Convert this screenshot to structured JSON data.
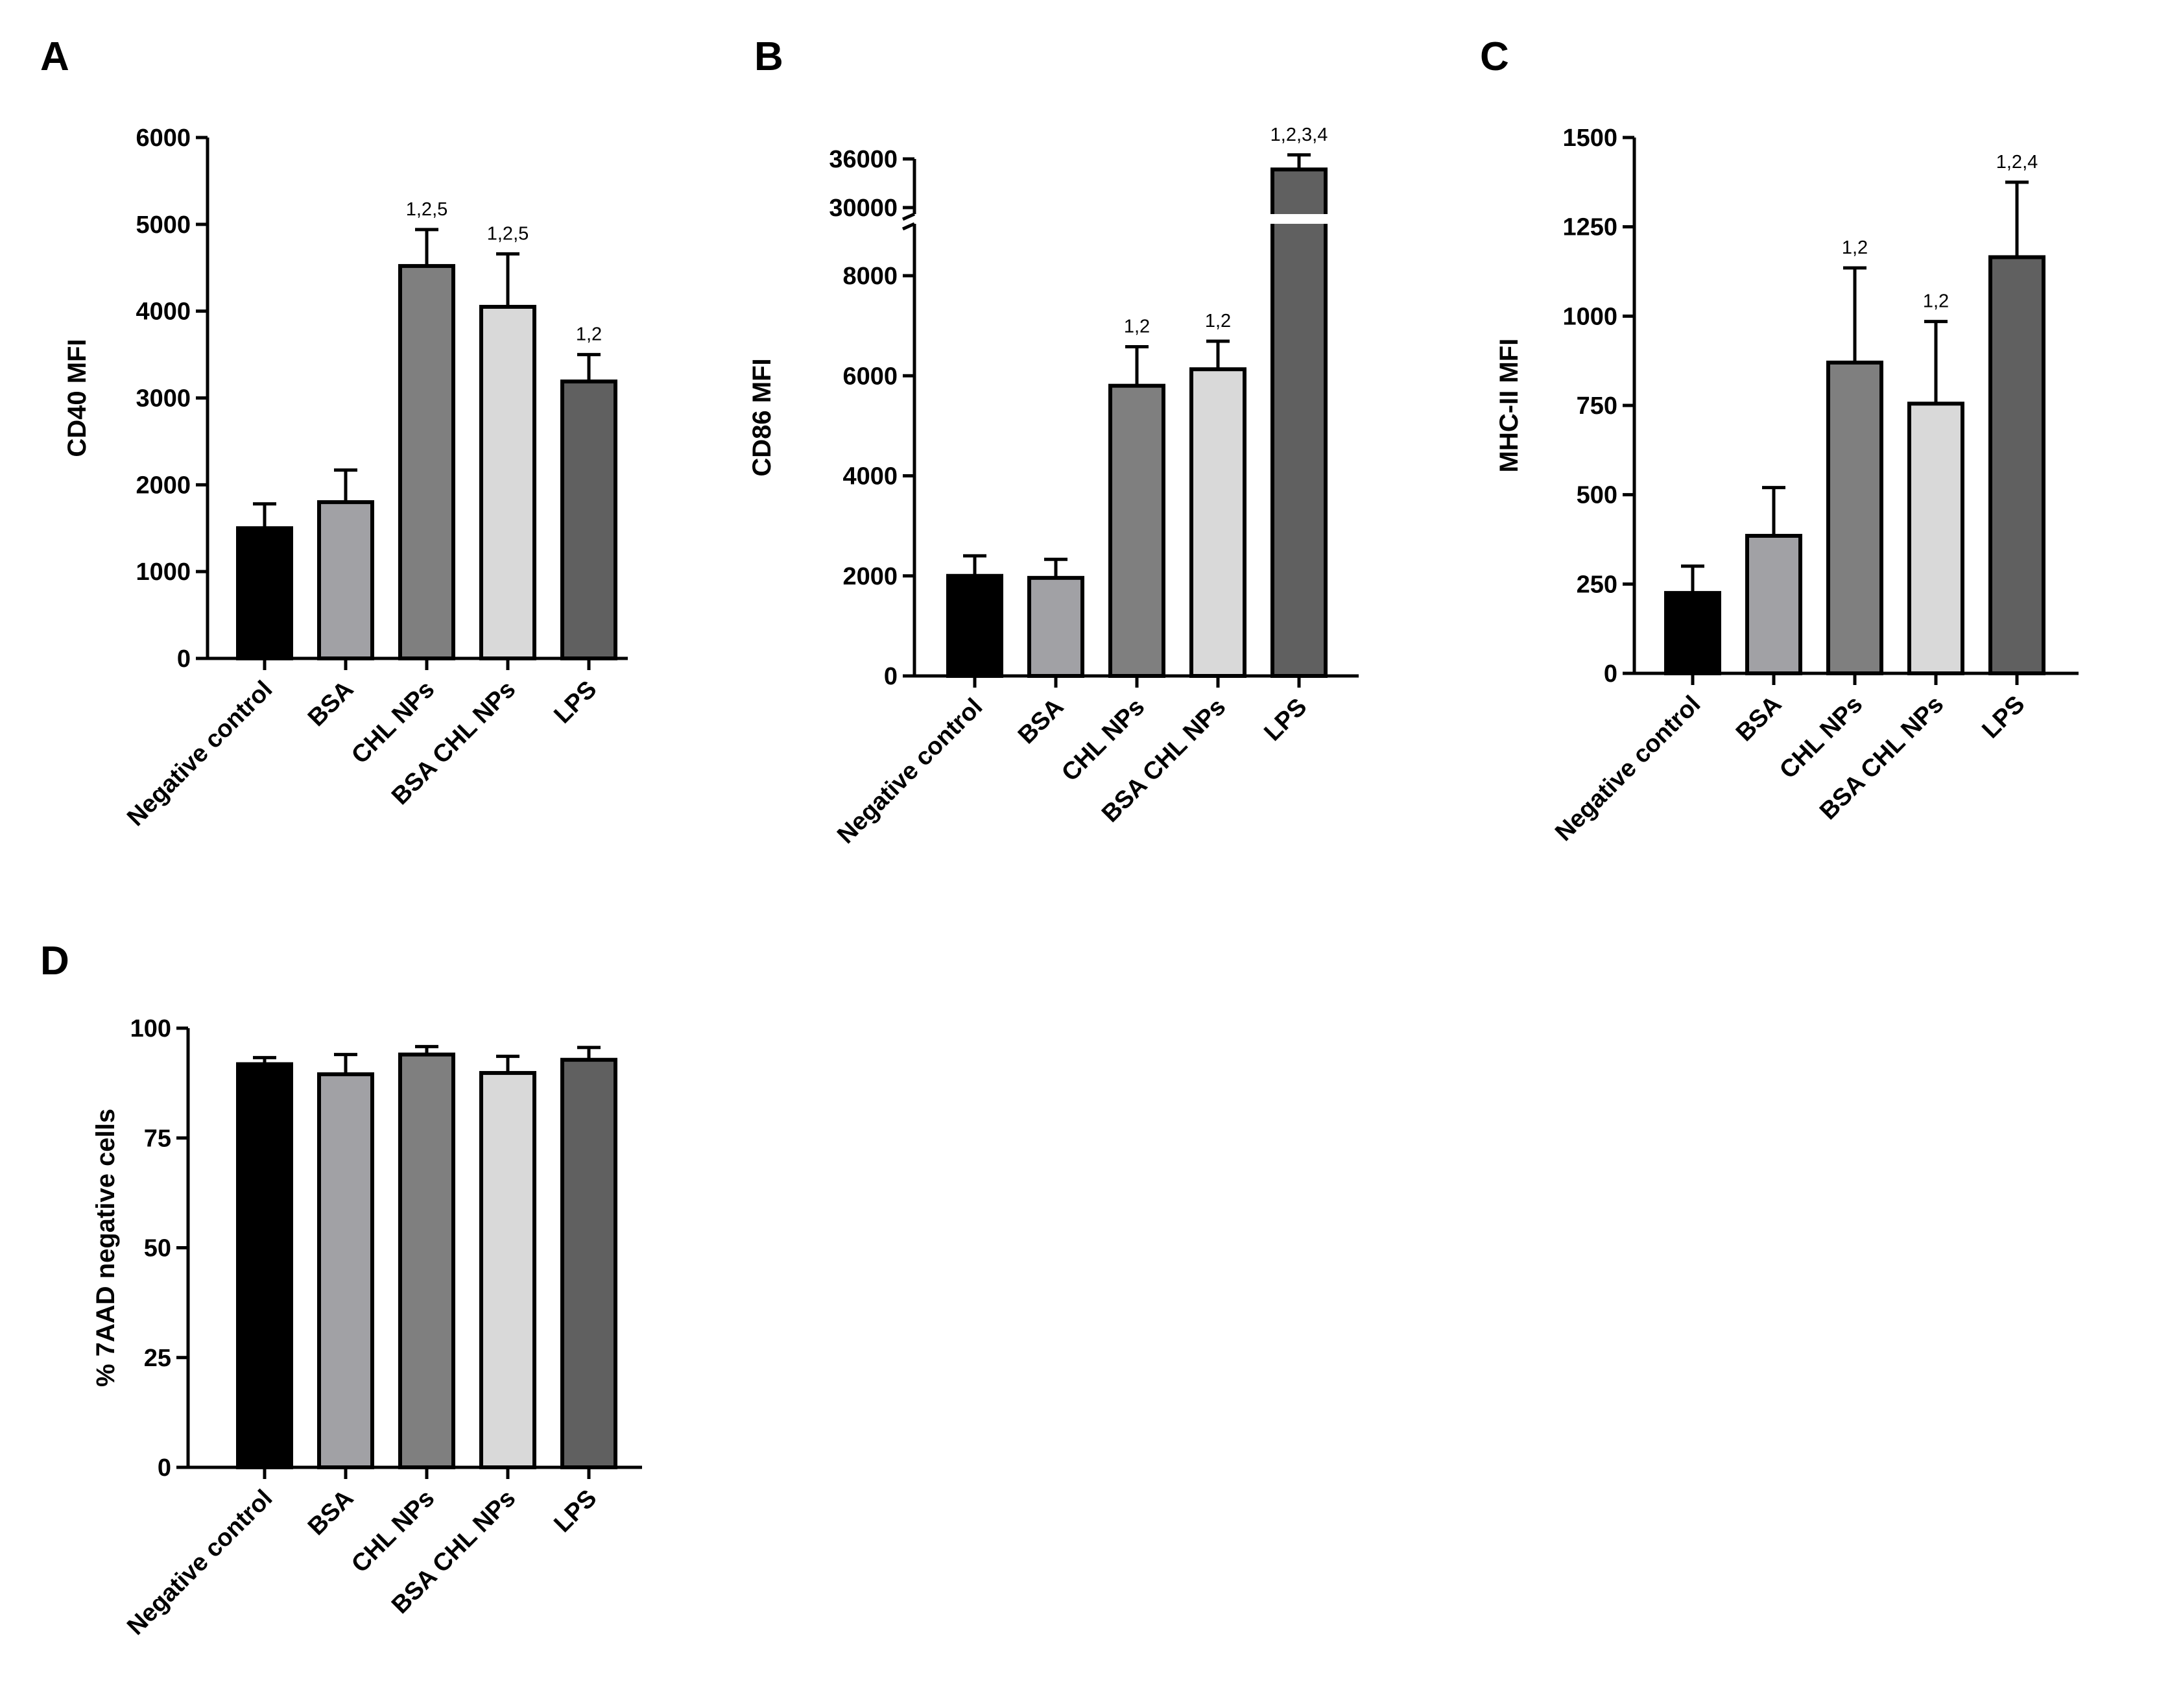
{
  "colors": {
    "negative_control": "#000000",
    "bsa": "#a1a1a5",
    "chl_nps": "#7f7f7f",
    "bsa_chl_nps": "#d9d9d9",
    "lps": "#606060"
  },
  "chart_data": [
    {
      "panel": "A",
      "type": "bar",
      "title": "",
      "xlabel": "",
      "ylabel": "CD40 MFI",
      "ylim": [
        0,
        6000
      ],
      "yticks": [
        "0",
        "1000",
        "2000",
        "3000",
        "4000",
        "5000",
        "6000"
      ],
      "categories": [
        "Negative control",
        "BSA",
        "CHL NPs",
        "BSA CHL NPs",
        "LPS"
      ],
      "values": [
        1500,
        1800,
        4520,
        4050,
        3190
      ],
      "errors": [
        280,
        370,
        420,
        610,
        310
      ],
      "annotations": [
        "",
        "",
        "1,2,5",
        "1,2,5",
        "1,2"
      ]
    },
    {
      "panel": "B",
      "type": "bar",
      "title": "",
      "xlabel": "",
      "ylabel": "CD86 MFI",
      "ylim": [
        0,
        36000
      ],
      "axis_break": [
        9000,
        30000
      ],
      "yticks": [
        "0",
        "2000",
        "4000",
        "6000",
        "8000",
        "30000",
        "36000"
      ],
      "categories": [
        "Negative control",
        "BSA",
        "CHL NPs",
        "BSA CHL NPs",
        "LPS"
      ],
      "values": [
        2000,
        1960,
        5800,
        6130,
        34700
      ],
      "errors": [
        400,
        370,
        780,
        560,
        1800
      ],
      "annotations": [
        "",
        "",
        "1,2",
        "1,2",
        "1,2,3,4"
      ]
    },
    {
      "panel": "C",
      "type": "bar",
      "title": "",
      "xlabel": "",
      "ylabel": "MHC-II MFI",
      "ylim": [
        0,
        1500
      ],
      "yticks": [
        "0",
        "250",
        "500",
        "750",
        "1000",
        "1250",
        "1500"
      ],
      "categories": [
        "Negative control",
        "BSA",
        "CHL NPs",
        "BSA CHL NPs",
        "LPS"
      ],
      "values": [
        225,
        385,
        870,
        755,
        1165
      ],
      "errors": [
        75,
        135,
        265,
        230,
        210
      ],
      "annotations": [
        "",
        "",
        "1,2",
        "1,2",
        "1,2,4"
      ]
    },
    {
      "panel": "D",
      "type": "bar",
      "title": "",
      "xlabel": "",
      "ylabel": "% 7AAD negative cells",
      "ylim": [
        0,
        100
      ],
      "yticks": [
        "0",
        "25",
        "50",
        "75",
        "100"
      ],
      "categories": [
        "Negative control",
        "BSA",
        "CHL NPs",
        "BSA CHL NPs",
        "LPS"
      ],
      "values": [
        91.8,
        89.5,
        94.0,
        89.8,
        92.8
      ],
      "errors": [
        1.5,
        4.5,
        1.8,
        3.8,
        2.8
      ],
      "annotations": [
        "",
        "",
        "",
        "",
        ""
      ]
    }
  ]
}
